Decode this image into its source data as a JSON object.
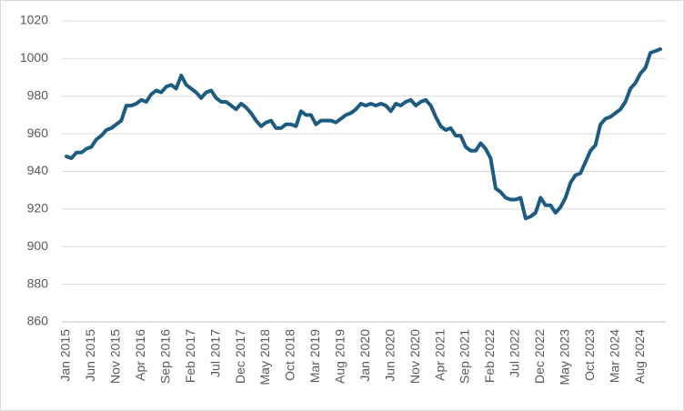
{
  "chart_data": {
    "type": "line",
    "categories": [
      "Jan 2015",
      null,
      null,
      null,
      null,
      "Jun 2015",
      null,
      null,
      null,
      null,
      "Nov 2015",
      null,
      null,
      null,
      null,
      "Apr 2016",
      null,
      null,
      null,
      null,
      "Sep 2016",
      null,
      null,
      null,
      null,
      "Feb 2017",
      null,
      null,
      null,
      null,
      "Jul 2017",
      null,
      null,
      null,
      null,
      "Dec 2017",
      null,
      null,
      null,
      null,
      "May 2018",
      null,
      null,
      null,
      null,
      "Oct 2018",
      null,
      null,
      null,
      null,
      "Mar 2019",
      null,
      null,
      null,
      null,
      "Aug 2019",
      null,
      null,
      null,
      null,
      "Jan 2020",
      null,
      null,
      null,
      null,
      "Jun 2020",
      null,
      null,
      null,
      null,
      "Nov 2020",
      null,
      null,
      null,
      null,
      "Apr 2021",
      null,
      null,
      null,
      null,
      "Sep 2021",
      null,
      null,
      null,
      null,
      "Feb 2022",
      null,
      null,
      null,
      null,
      "Jul 2022",
      null,
      null,
      null,
      null,
      "Dec 2022",
      null,
      null,
      null,
      null,
      "May 2023",
      null,
      null,
      null,
      null,
      "Oct 2023",
      null,
      null,
      null,
      null,
      "Mar 2024",
      null,
      null,
      null,
      null,
      "Aug 2024",
      null,
      null,
      null,
      null
    ],
    "values": [
      948,
      947,
      950,
      950,
      952,
      953,
      957,
      959,
      962,
      963,
      965,
      967,
      975,
      975,
      976,
      978,
      977,
      981,
      983,
      982,
      985,
      986,
      984,
      991,
      986,
      984,
      982,
      979,
      982,
      983,
      979,
      977,
      977,
      975,
      973,
      976,
      974,
      971,
      967,
      964,
      966,
      967,
      963,
      963,
      965,
      965,
      964,
      972,
      970,
      970,
      965,
      967,
      967,
      967,
      966,
      968,
      970,
      971,
      973,
      976,
      975,
      976,
      975,
      976,
      975,
      972,
      976,
      975,
      977,
      978,
      975,
      977,
      978,
      975,
      969,
      964,
      962,
      963,
      959,
      959,
      953,
      951,
      951,
      955,
      952,
      947,
      931,
      929,
      926,
      925,
      925,
      926,
      915,
      916,
      918,
      926,
      922,
      922,
      918,
      921,
      926,
      934,
      938,
      939,
      945,
      951,
      954,
      965,
      968,
      969,
      971,
      973,
      977,
      984,
      987,
      992,
      995,
      1003,
      1004,
      1005
    ],
    "color": "#1d5c80",
    "ylim": [
      860,
      1020
    ],
    "yticks": [
      860,
      880,
      900,
      920,
      940,
      960,
      980,
      1000,
      1020
    ],
    "grid": true
  }
}
